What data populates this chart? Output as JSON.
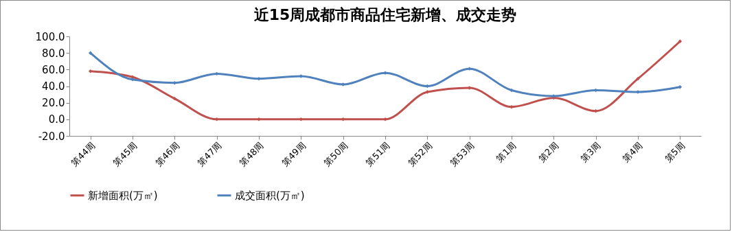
{
  "chart_data": {
    "type": "line",
    "title": "近15周成都市商品住宅新增、成交走势",
    "categories": [
      "第44周",
      "第45周",
      "第46周",
      "第47周",
      "第48周",
      "第49周",
      "第50周",
      "第51周",
      "第52周",
      "第53周",
      "第1周",
      "第2周",
      "第3周",
      "第4周",
      "第5周"
    ],
    "series": [
      {
        "name": "新增面积(万㎡)",
        "color": "#c0504d",
        "values": [
          58,
          51,
          25,
          0,
          0,
          0,
          0,
          0,
          33,
          38,
          15,
          26,
          10,
          49,
          94
        ]
      },
      {
        "name": "成交面积(万㎡)",
        "color": "#4f81bd",
        "values": [
          80,
          48,
          44,
          55,
          49,
          52,
          42,
          56,
          40,
          61,
          35,
          28,
          35,
          33,
          39
        ]
      }
    ],
    "ylim": [
      -20,
      100
    ],
    "yticks": [
      {
        "value": -20,
        "label": "-20.0"
      },
      {
        "value": 0,
        "label": "0.0"
      },
      {
        "value": 20,
        "label": "20.0"
      },
      {
        "value": 40,
        "label": "40.0"
      },
      {
        "value": 60,
        "label": "60.0"
      },
      {
        "value": 80,
        "label": "80.0"
      },
      {
        "value": 100,
        "label": "100.0"
      }
    ],
    "grid": false,
    "legend": "bottom",
    "marker": "diamond",
    "line_style": "solid"
  }
}
